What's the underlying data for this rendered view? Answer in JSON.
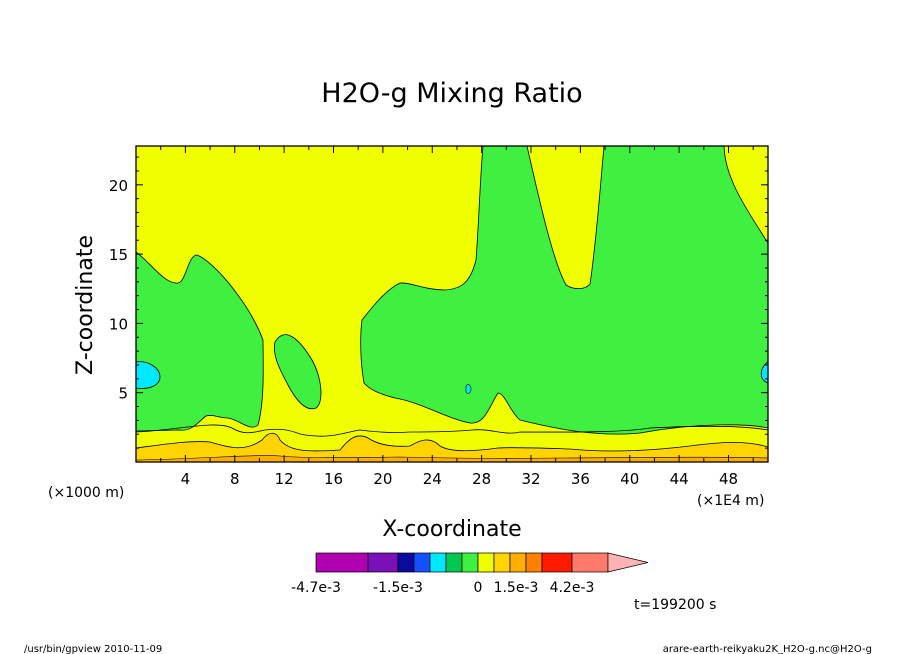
{
  "chart_data": {
    "type": "contour",
    "title": "H2O-g Mixing Ratio",
    "xlabel": "X-coordinate",
    "ylabel": "Z-coordinate",
    "x_unit_left": "(×1000 m)",
    "x_unit_right": "(×1E4 m)",
    "x_ticks": [
      "4",
      "8",
      "12",
      "16",
      "20",
      "24",
      "28",
      "32",
      "36",
      "40",
      "44",
      "48"
    ],
    "y_ticks": [
      "5",
      "10",
      "15",
      "20"
    ],
    "xlim": [
      0,
      51.2
    ],
    "ylim": [
      0,
      22.8
    ],
    "time_label": "t=199200 s",
    "colorbar": {
      "colors": [
        "#b000b0",
        "#7a10b8",
        "#0a0aa0",
        "#1450ff",
        "#00e8ff",
        "#00c850",
        "#40f040",
        "#f0ff00",
        "#ffd400",
        "#ffae00",
        "#ff8000",
        "#ff1a00",
        "#ff7a6a",
        "#ffb3b3"
      ],
      "tick_labels": [
        "-4.7e-3",
        "-1.5e-3",
        "0",
        "1.5e-3",
        "4.2e-3"
      ]
    },
    "regions": {
      "background": "#f0ff00",
      "positive_band": "#40f040",
      "low_level": "#ffd400",
      "near_surface": "#ffae00",
      "negative_spot": "#00e8ff"
    }
  },
  "footer": {
    "left": "/usr/bin/gpview   2010-11-09",
    "right": "arare-earth-reikyaku2K_H2O-g.nc@H2O-g"
  }
}
